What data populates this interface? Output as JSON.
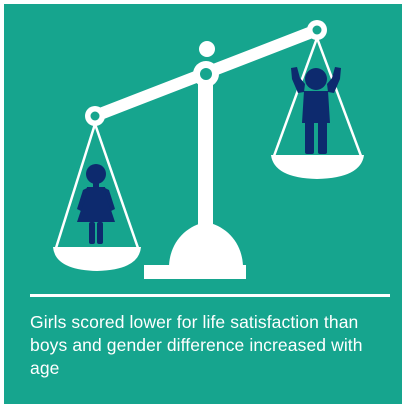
{
  "caption": "Girls scored lower for life satisfaction than boys and gender difference increased with age",
  "colors": {
    "background": "#16a58e",
    "scale": "#ffffff",
    "figures": "#0d2a6e"
  },
  "icons": {
    "scale": "balance-scale-icon",
    "girl": "girl-figure-icon",
    "boy": "boy-figure-icon"
  }
}
